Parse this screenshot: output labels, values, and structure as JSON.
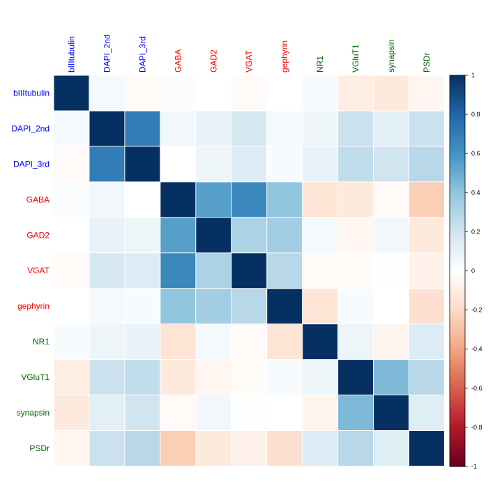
{
  "chart_data": {
    "type": "heatmap",
    "title": "",
    "variables": [
      "bIIItubulin",
      "DAPI_2nd",
      "DAPI_3rd",
      "GABA",
      "GAD2",
      "VGAT",
      "gephyrin",
      "NR1",
      "VGluT1",
      "synapsin",
      "PSDr"
    ],
    "label_groups": [
      "blue",
      "blue",
      "blue",
      "red",
      "red",
      "red",
      "red",
      "green",
      "green",
      "green",
      "green"
    ],
    "group_colors": {
      "blue": "#0000ff",
      "red": "#ff0000",
      "green": "#006400"
    },
    "matrix": [
      [
        1.0,
        0.05,
        -0.03,
        0.02,
        0.0,
        -0.02,
        0.0,
        0.03,
        -0.1,
        -0.12,
        -0.05
      ],
      [
        0.05,
        1.0,
        0.7,
        0.06,
        0.1,
        0.18,
        0.05,
        0.08,
        0.22,
        0.12,
        0.22
      ],
      [
        -0.03,
        0.7,
        1.0,
        0.0,
        0.08,
        0.15,
        0.03,
        0.1,
        0.25,
        0.2,
        0.28
      ],
      [
        0.02,
        0.06,
        0.0,
        1.0,
        0.55,
        0.65,
        0.4,
        -0.15,
        -0.12,
        -0.03,
        -0.25
      ],
      [
        0.0,
        0.1,
        0.08,
        0.55,
        1.0,
        0.32,
        0.35,
        0.05,
        -0.05,
        0.06,
        -0.12
      ],
      [
        -0.02,
        0.18,
        0.15,
        0.65,
        0.32,
        1.0,
        0.28,
        -0.03,
        -0.02,
        0.01,
        -0.08
      ],
      [
        0.0,
        0.05,
        0.03,
        0.4,
        0.35,
        0.28,
        1.0,
        -0.15,
        0.03,
        0.0,
        -0.17
      ],
      [
        0.03,
        0.08,
        0.1,
        -0.15,
        0.05,
        -0.03,
        -0.15,
        1.0,
        0.08,
        -0.06,
        0.15
      ],
      [
        -0.1,
        0.22,
        0.25,
        -0.12,
        -0.05,
        -0.02,
        0.03,
        0.08,
        1.0,
        0.45,
        0.28
      ],
      [
        -0.12,
        0.12,
        0.2,
        -0.03,
        0.06,
        0.01,
        0.0,
        -0.06,
        0.45,
        1.0,
        0.14
      ],
      [
        -0.05,
        0.22,
        0.28,
        -0.25,
        -0.12,
        -0.08,
        -0.17,
        0.15,
        0.28,
        0.14,
        1.0
      ]
    ],
    "colorbar": {
      "range": [
        -1,
        1
      ],
      "ticks": [
        -1,
        -0.8,
        -0.6,
        -0.4,
        -0.2,
        0,
        0.2,
        0.4,
        0.6,
        0.8,
        1
      ],
      "tick_labels": [
        "-1",
        "-0.8",
        "-0.6",
        "-0.4",
        "-0.2",
        "0",
        "0.2",
        "0.4",
        "0.6",
        "0.8",
        "1"
      ]
    },
    "colorscale": [
      "#67001f",
      "#b2182b",
      "#d6604d",
      "#f4a582",
      "#fddbc7",
      "#ffffff",
      "#d1e5f0",
      "#92c5de",
      "#4393c3",
      "#2166ac",
      "#053061"
    ]
  }
}
